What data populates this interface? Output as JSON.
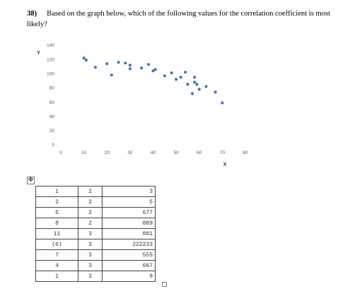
{
  "question": {
    "number": "38)",
    "text": "Based on the graph below, which of the following values for the correlation coefficient is most likely?"
  },
  "chart_data": {
    "type": "scatter",
    "xlabel": "X",
    "ylabel": "Y",
    "xlim": [
      0,
      80
    ],
    "ylim": [
      0,
      140
    ],
    "xticks": [
      0,
      10,
      20,
      30,
      40,
      50,
      60,
      70,
      80
    ],
    "yticks": [
      0,
      20,
      40,
      60,
      80,
      100,
      120,
      140
    ],
    "grid": false,
    "color": "#4472C4",
    "points": [
      {
        "x": 10,
        "y": 122
      },
      {
        "x": 11,
        "y": 119
      },
      {
        "x": 15,
        "y": 109
      },
      {
        "x": 20,
        "y": 114
      },
      {
        "x": 22,
        "y": 98
      },
      {
        "x": 25,
        "y": 116
      },
      {
        "x": 28,
        "y": 115
      },
      {
        "x": 30,
        "y": 112
      },
      {
        "x": 30,
        "y": 107
      },
      {
        "x": 35,
        "y": 108
      },
      {
        "x": 38,
        "y": 113
      },
      {
        "x": 40,
        "y": 104
      },
      {
        "x": 41,
        "y": 106
      },
      {
        "x": 45,
        "y": 97
      },
      {
        "x": 48,
        "y": 101
      },
      {
        "x": 50,
        "y": 92
      },
      {
        "x": 52,
        "y": 95
      },
      {
        "x": 54,
        "y": 102
      },
      {
        "x": 55,
        "y": 85
      },
      {
        "x": 57,
        "y": 72
      },
      {
        "x": 58,
        "y": 95
      },
      {
        "x": 58,
        "y": 88
      },
      {
        "x": 59,
        "y": 85
      },
      {
        "x": 60,
        "y": 78
      },
      {
        "x": 63,
        "y": 82
      },
      {
        "x": 67,
        "y": 74
      },
      {
        "x": 70,
        "y": 59
      }
    ]
  },
  "table": {
    "rows": [
      [
        "1",
        "2",
        "3"
      ],
      [
        "2",
        "2",
        "5"
      ],
      [
        "5",
        "2",
        "677"
      ],
      [
        "8",
        "2",
        "889"
      ],
      [
        "11",
        "3",
        "001"
      ],
      [
        "(6)",
        "3",
        "222233"
      ],
      [
        "7",
        "3",
        "555"
      ],
      [
        "4",
        "3",
        "667"
      ],
      [
        "1",
        "3",
        "9"
      ]
    ]
  },
  "icons": {
    "table_handle": "move-handle-icon",
    "resize": "resize-handle-icon"
  }
}
